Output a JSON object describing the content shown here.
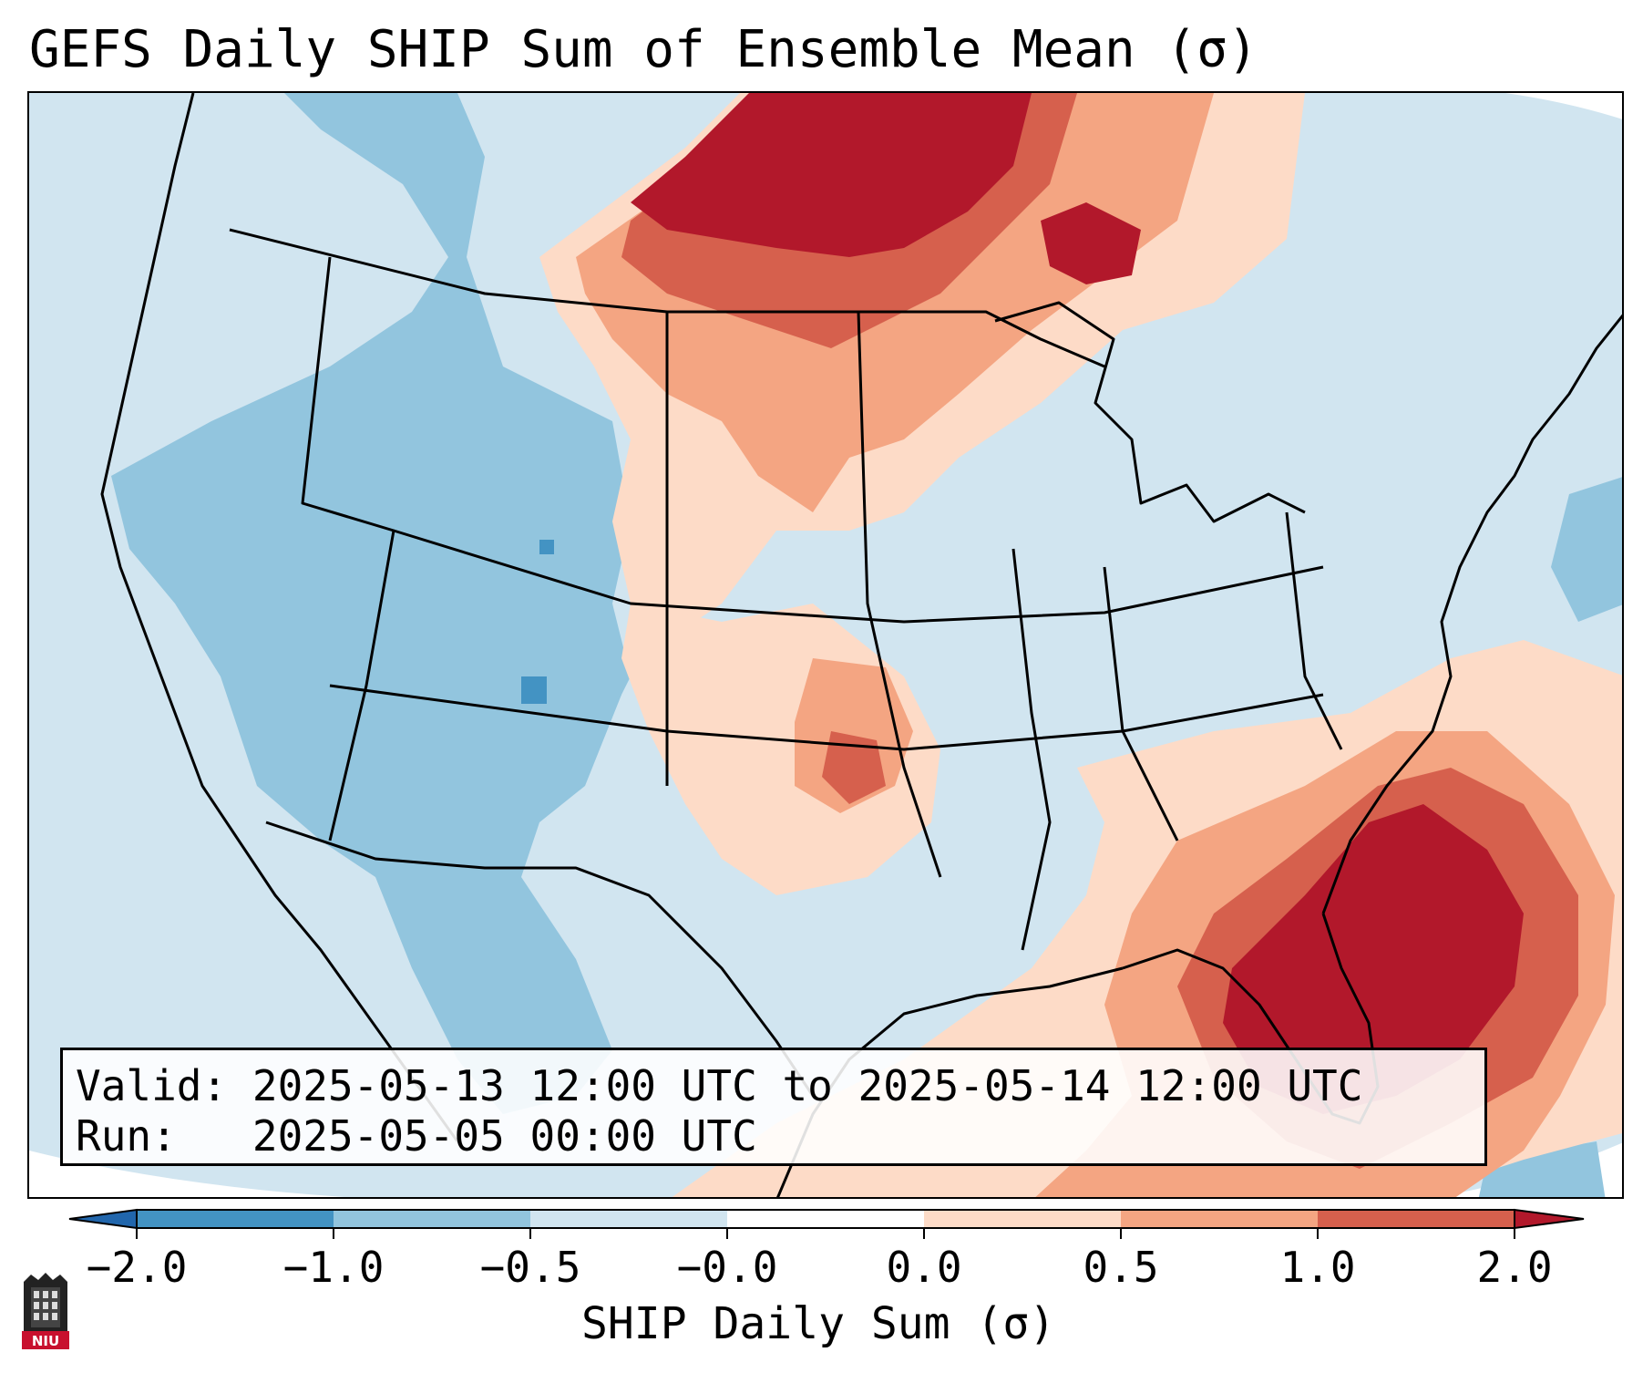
{
  "title": "GEFS Daily SHIP Sum of Ensemble Mean (σ)",
  "info": {
    "valid_label": "Valid:",
    "valid_value": "2025-05-13 12:00 UTC to 2025-05-14 12:00 UTC",
    "run_label": "Run:",
    "run_value": "2025-05-05 00:00 UTC"
  },
  "colorbar": {
    "label": "SHIP Daily Sum (σ)",
    "ticks": [
      "−2.0",
      "−1.0",
      "−0.5",
      "−0.0",
      "0.0",
      "0.5",
      "1.0",
      "2.0"
    ],
    "colors": [
      "#4393c3",
      "#92c5de",
      "#d1e5f0",
      "#fddbc7",
      "#f4a582",
      "#d6604d",
      "#b2182b"
    ],
    "under_color": "#2166ac",
    "over_color": "#b2182b",
    "background_color": "#d1e5f0"
  },
  "logo": {
    "text": "NIU",
    "color": "#c8102e"
  }
}
